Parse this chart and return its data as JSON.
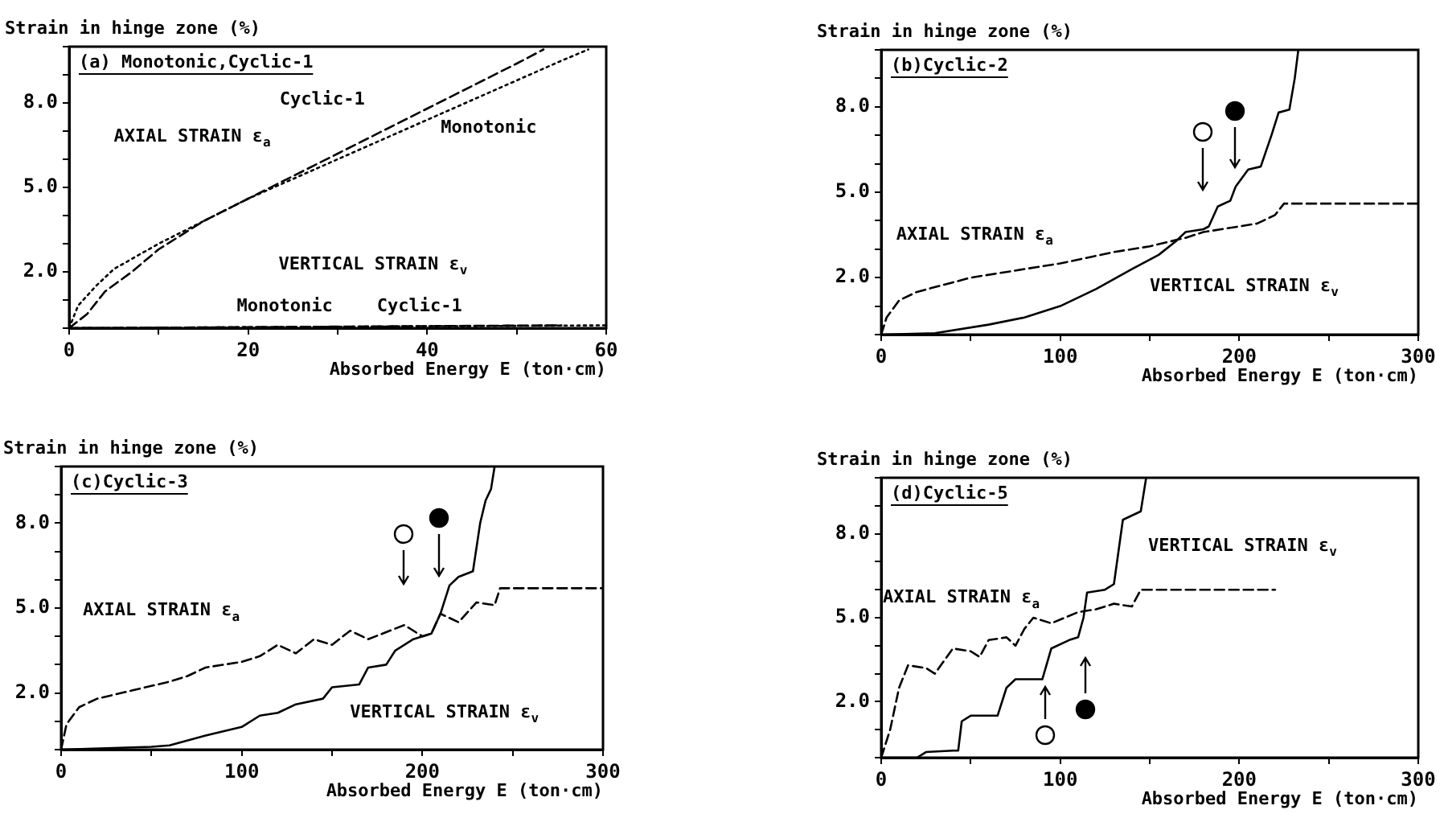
{
  "chart_data": [
    {
      "type": "line",
      "title": "(a) Monotonic,Cyclic-1",
      "xlabel": "Absorbed Energy E (ton·cm)",
      "ylabel": "Strain in hinge zone (%)",
      "marker": "none",
      "grid": false,
      "legend": false,
      "xlim": [
        0,
        60
      ],
      "xticks": [
        0,
        {
          "value": 10,
          "label": null
        },
        20,
        {
          "value": 30,
          "label": null
        },
        40,
        {
          "value": 50,
          "label": null
        },
        60
      ],
      "ylim": [
        0,
        10
      ],
      "yticks": [
        {
          "value": 0,
          "label": null
        },
        {
          "value": 1,
          "label": null
        },
        {
          "value": 2,
          "label": "2.0"
        },
        {
          "value": 3,
          "label": null
        },
        {
          "value": 4,
          "label": null
        },
        {
          "value": 5,
          "label": "5.0"
        },
        {
          "value": 6,
          "label": null
        },
        {
          "value": 7,
          "label": null
        },
        {
          "value": 8,
          "label": "8.0"
        },
        {
          "value": 9,
          "label": null
        },
        {
          "value": 10,
          "label": null
        }
      ],
      "series": [
        {
          "color": "#000000",
          "line_style": "dashed",
          "x": [
            0,
            2,
            4,
            7,
            10,
            15,
            20,
            25,
            30,
            35,
            40,
            45,
            50,
            53
          ],
          "values": [
            0,
            0.5,
            1.3,
            2.0,
            2.8,
            3.8,
            4.6,
            5.4,
            6.2,
            7.0,
            7.8,
            8.6,
            9.4,
            9.9
          ]
        },
        {
          "color": "#000000",
          "line_style": "dotted",
          "x": [
            0,
            1,
            3,
            5,
            10,
            15,
            20,
            25,
            30,
            35,
            40,
            45,
            50,
            55,
            58
          ],
          "values": [
            0,
            0.8,
            1.5,
            2.1,
            3.0,
            3.8,
            4.6,
            5.3,
            6.0,
            6.7,
            7.4,
            8.1,
            8.8,
            9.5,
            9.9
          ]
        },
        {
          "color": "#000000",
          "line_style": "dotted",
          "x": [
            0,
            60
          ],
          "values": [
            0,
            0.1
          ]
        },
        {
          "color": "#000000",
          "line_style": "dashed",
          "x": [
            0,
            55
          ],
          "values": [
            0,
            0.1
          ]
        }
      ],
      "annotations": [
        "Cyclic-1",
        "AXIAL STRAIN ε$_{a}$",
        "Monotonic",
        "VERTICAL STRAIN ε$_{v}$",
        "Monotonic",
        "Cyclic-1"
      ]
    },
    {
      "type": "line",
      "title": "(b)Cyclic-2",
      "xlabel": "Absorbed Energy E (ton·cm)",
      "ylabel": "Strain in hinge zone (%)",
      "marker": "none",
      "grid": false,
      "legend": false,
      "xlim": [
        0,
        300
      ],
      "xticks": [
        0,
        {
          "value": 50,
          "label": null
        },
        100,
        {
          "value": 150,
          "label": null
        },
        200,
        {
          "value": 250,
          "label": null
        },
        300
      ],
      "ylim": [
        0,
        10
      ],
      "yticks": [
        {
          "value": 0,
          "label": null
        },
        {
          "value": 1,
          "label": null
        },
        {
          "value": 2,
          "label": "2.0"
        },
        {
          "value": 3,
          "label": null
        },
        {
          "value": 4,
          "label": null
        },
        {
          "value": 5,
          "label": "5.0"
        },
        {
          "value": 6,
          "label": null
        },
        {
          "value": 7,
          "label": null
        },
        {
          "value": 8,
          "label": "8.0"
        },
        {
          "value": 9,
          "label": null
        },
        {
          "value": 10,
          "label": null
        }
      ],
      "series": [
        {
          "color": "#000000",
          "line_style": "dashed",
          "x": [
            0,
            3,
            10,
            20,
            50,
            100,
            130,
            150,
            170,
            180,
            190,
            200,
            210,
            220,
            225,
            300
          ],
          "values": [
            0,
            0.6,
            1.2,
            1.5,
            2.0,
            2.5,
            2.9,
            3.1,
            3.4,
            3.6,
            3.7,
            3.8,
            3.9,
            4.2,
            4.6,
            4.6
          ]
        },
        {
          "color": "#000000",
          "line_style": "solid",
          "x": [
            0,
            30,
            60,
            80,
            100,
            120,
            140,
            155,
            165,
            170,
            180,
            183,
            188,
            195,
            198,
            205,
            212,
            218,
            222,
            228,
            231,
            233
          ],
          "values": [
            0,
            0.05,
            0.35,
            0.6,
            1.0,
            1.6,
            2.3,
            2.8,
            3.3,
            3.6,
            3.7,
            3.8,
            4.5,
            4.7,
            5.2,
            5.8,
            5.9,
            7.0,
            7.8,
            7.9,
            9.0,
            10
          ]
        }
      ],
      "annotations": [
        "AXIAL STRAIN ε$_{a}$",
        "VERTICAL STRAIN ε$_{v}$"
      ]
    },
    {
      "type": "line",
      "title": "(c)Cyclic-3",
      "xlabel": "Absorbed Energy E (ton·cm)",
      "ylabel": "Strain in hinge zone (%)",
      "marker": "none",
      "grid": false,
      "legend": false,
      "xlim": [
        0,
        300
      ],
      "xticks": [
        0,
        {
          "value": 50,
          "label": null
        },
        100,
        {
          "value": 150,
          "label": null
        },
        200,
        {
          "value": 250,
          "label": null
        },
        300
      ],
      "ylim": [
        0,
        10
      ],
      "yticks": [
        {
          "value": 0,
          "label": null
        },
        {
          "value": 1,
          "label": null
        },
        {
          "value": 2,
          "label": "2.0"
        },
        {
          "value": 3,
          "label": null
        },
        {
          "value": 4,
          "label": null
        },
        {
          "value": 5,
          "label": "5.0"
        },
        {
          "value": 6,
          "label": null
        },
        {
          "value": 7,
          "label": null
        },
        {
          "value": 8,
          "label": "8.0"
        },
        {
          "value": 9,
          "label": null
        },
        {
          "value": 10,
          "label": null
        }
      ],
      "series": [
        {
          "color": "#000000",
          "line_style": "dashed",
          "x": [
            0,
            3,
            10,
            20,
            40,
            60,
            70,
            80,
            100,
            110,
            120,
            130,
            140,
            150,
            160,
            170,
            190,
            200,
            205,
            210,
            220,
            230,
            240,
            243,
            300
          ],
          "values": [
            0,
            0.9,
            1.5,
            1.8,
            2.1,
            2.4,
            2.6,
            2.9,
            3.1,
            3.3,
            3.7,
            3.4,
            3.9,
            3.7,
            4.2,
            3.9,
            4.4,
            4.0,
            4.1,
            4.8,
            4.5,
            5.2,
            5.1,
            5.7,
            5.7
          ]
        },
        {
          "color": "#000000",
          "line_style": "solid",
          "x": [
            0,
            50,
            60,
            80,
            100,
            110,
            120,
            130,
            145,
            150,
            165,
            170,
            180,
            185,
            195,
            205,
            210,
            215,
            220,
            228,
            232,
            235,
            238,
            240
          ],
          "values": [
            0,
            0.1,
            0.15,
            0.5,
            0.8,
            1.2,
            1.3,
            1.6,
            1.8,
            2.2,
            2.3,
            2.9,
            3.0,
            3.5,
            3.9,
            4.1,
            4.8,
            5.8,
            6.1,
            6.3,
            8.0,
            8.8,
            9.2,
            10
          ]
        }
      ],
      "annotations": [
        "AXIAL STRAIN ε$_{a}$",
        "VERTICAL STRAIN ε$_{v}$"
      ]
    },
    {
      "type": "line",
      "title": "(d)Cyclic-5",
      "xlabel": "Absorbed Energy E (ton·cm)",
      "ylabel": "Strain in hinge zone (%)",
      "marker": "none",
      "grid": false,
      "legend": false,
      "xlim": [
        0,
        300
      ],
      "xticks": [
        0,
        {
          "value": 50,
          "label": null
        },
        100,
        {
          "value": 150,
          "label": null
        },
        200,
        {
          "value": 250,
          "label": null
        },
        300
      ],
      "ylim": [
        0,
        10
      ],
      "yticks": [
        {
          "value": 0,
          "label": null
        },
        {
          "value": 1,
          "label": null
        },
        {
          "value": 2,
          "label": "2.0"
        },
        {
          "value": 3,
          "label": null
        },
        {
          "value": 4,
          "label": null
        },
        {
          "value": 5,
          "label": "5.0"
        },
        {
          "value": 6,
          "label": null
        },
        {
          "value": 7,
          "label": null
        },
        {
          "value": 8,
          "label": "8.0"
        },
        {
          "value": 9,
          "label": null
        },
        {
          "value": 10,
          "label": null
        }
      ],
      "series": [
        {
          "color": "#000000",
          "line_style": "dashed",
          "x": [
            0,
            5,
            10,
            15,
            25,
            30,
            40,
            50,
            55,
            60,
            70,
            75,
            80,
            85,
            95,
            110,
            120,
            130,
            140,
            145,
            220
          ],
          "values": [
            0,
            1.0,
            2.5,
            3.3,
            3.2,
            3.0,
            3.9,
            3.8,
            3.6,
            4.2,
            4.3,
            4.0,
            4.6,
            5.0,
            4.8,
            5.2,
            5.3,
            5.5,
            5.4,
            6.0,
            6.0
          ]
        },
        {
          "color": "#000000",
          "line_style": "solid",
          "x": [
            0,
            20,
            25,
            40,
            43,
            45,
            50,
            65,
            70,
            75,
            90,
            95,
            105,
            110,
            113,
            115,
            125,
            130,
            135,
            145,
            148
          ],
          "values": [
            0,
            0,
            0.2,
            0.25,
            0.25,
            1.3,
            1.5,
            1.5,
            2.5,
            2.8,
            2.8,
            3.9,
            4.2,
            4.3,
            5.0,
            5.9,
            6.0,
            6.2,
            8.5,
            8.8,
            10
          ]
        }
      ],
      "annotations": [
        "VERTICAL STRAIN ε$_{v}$",
        "AXIAL STRAIN ε$_{a}$"
      ]
    }
  ]
}
